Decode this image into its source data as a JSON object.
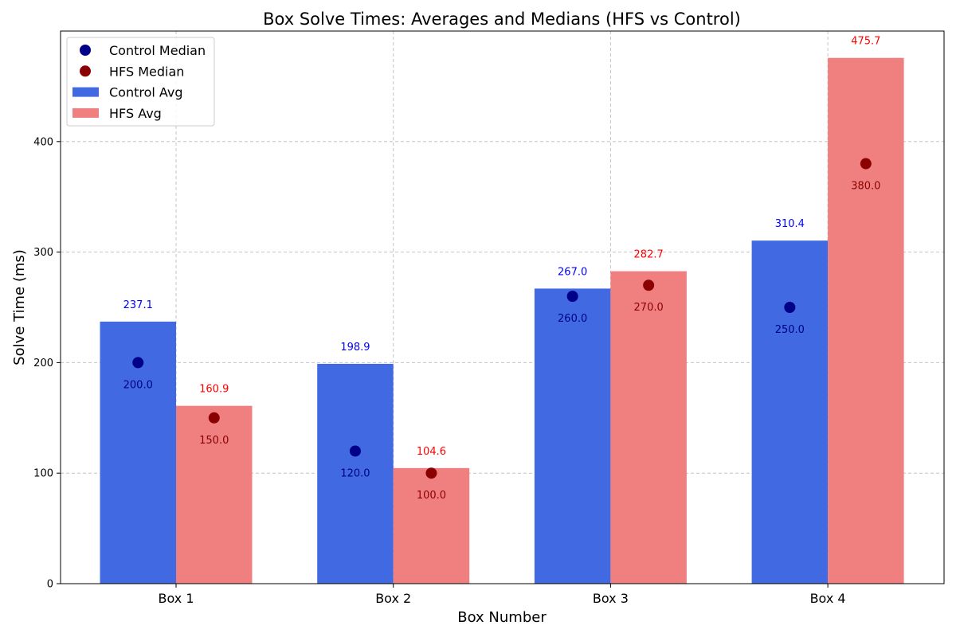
{
  "chart_data": {
    "type": "bar",
    "title": "Box Solve Times: Averages and Medians (HFS vs Control)",
    "xlabel": "Box Number",
    "ylabel": "Solve Time (ms)",
    "categories": [
      "Box 1",
      "Box 2",
      "Box 3",
      "Box 4"
    ],
    "ylim": [
      0,
      500
    ],
    "yticks": [
      0,
      100,
      200,
      300,
      400
    ],
    "grid": true,
    "legend_position": "top-left",
    "series": [
      {
        "name": "Control Avg",
        "kind": "bar",
        "color": "#4169e1",
        "label_color": "#0000ff",
        "values": [
          237.1,
          198.9,
          267.0,
          310.4
        ],
        "labels": [
          "237.1",
          "198.9",
          "267.0",
          "310.4"
        ]
      },
      {
        "name": "HFS Avg",
        "kind": "bar",
        "color": "#f08080",
        "label_color": "#ff0000",
        "values": [
          160.9,
          104.6,
          282.7,
          475.7
        ],
        "labels": [
          "160.9",
          "104.6",
          "282.7",
          "475.7"
        ]
      },
      {
        "name": "Control Median",
        "kind": "scatter",
        "color": "#00008b",
        "label_color": "#00008b",
        "values": [
          200.0,
          120.0,
          260.0,
          250.0
        ],
        "labels": [
          "200.0",
          "120.0",
          "260.0",
          "250.0"
        ]
      },
      {
        "name": "HFS Median",
        "kind": "scatter",
        "color": "#8b0000",
        "label_color": "#8b0000",
        "values": [
          150.0,
          100.0,
          270.0,
          380.0
        ],
        "labels": [
          "150.0",
          "100.0",
          "270.0",
          "380.0"
        ]
      }
    ],
    "legend": [
      "Control Median",
      "HFS Median",
      "Control Avg",
      "HFS Avg"
    ]
  }
}
